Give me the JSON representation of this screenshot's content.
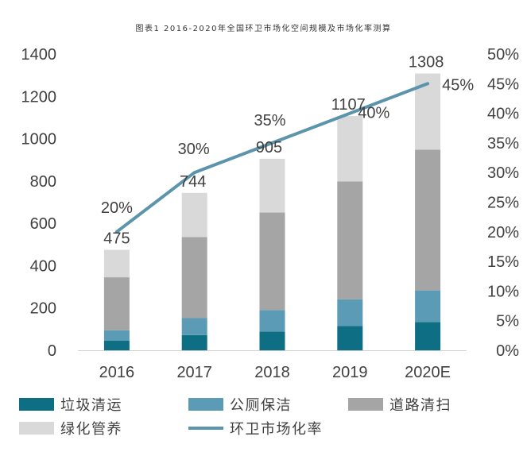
{
  "chart_data": {
    "type": "bar",
    "title": "图表1  2016-2020年全国环卫市场化空间规模及市场化率测算",
    "categories": [
      "2016",
      "2017",
      "2018",
      "2019",
      "2020E"
    ],
    "series": [
      {
        "name": "垃圾清运",
        "color": "#0e6e83",
        "values": [
          45,
          72,
          88,
          115,
          133
        ]
      },
      {
        "name": "公厕保洁",
        "color": "#5b9bb5",
        "values": [
          50,
          80,
          102,
          126,
          150
        ]
      },
      {
        "name": "道路清扫",
        "color": "#a5a5a5",
        "values": [
          250,
          383,
          461,
          557,
          665
        ]
      },
      {
        "name": "绿化管养",
        "color": "#d9d9d9",
        "values": [
          130,
          209,
          254,
          309,
          360
        ]
      }
    ],
    "totals": [
      475,
      744,
      905,
      1107,
      1308
    ],
    "line_series": {
      "name": "环卫市场化率",
      "color": "#5b94ab",
      "values": [
        20,
        30,
        35,
        40,
        45
      ],
      "labels": [
        "20%",
        "30%",
        "35%",
        "40%",
        "45%"
      ]
    },
    "y_left": {
      "ylim": [
        0,
        1400
      ],
      "ticks": [
        "0",
        "200",
        "400",
        "600",
        "800",
        "1000",
        "1200",
        "1400"
      ]
    },
    "y_right": {
      "ylim": [
        0,
        50
      ],
      "ticks": [
        "0%",
        "5%",
        "10%",
        "15%",
        "20%",
        "25%",
        "30%",
        "35%",
        "40%",
        "45%",
        "50%"
      ]
    },
    "grid": false,
    "legend_position": "bottom"
  }
}
